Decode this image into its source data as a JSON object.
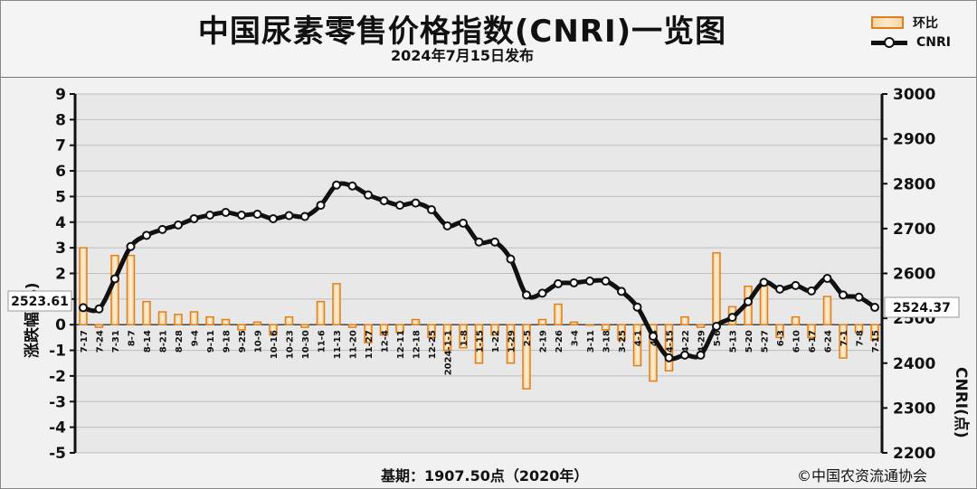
{
  "header": {
    "title": "中国尿素零售价格指数(CNRI)一览图",
    "subtitle": "2024年7月15日发布"
  },
  "legend": {
    "bar_label": "环比",
    "line_label": "CNRI"
  },
  "footer": {
    "base_text": "基期：1907.50点（2020年）",
    "copyright": "©中国农资流通协会"
  },
  "callouts": {
    "first_value": "2523.61",
    "last_value": "2524.37"
  },
  "colors": {
    "bar_border": "#e0801c",
    "bar_fill": "#f3d6a4",
    "line": "#111111",
    "grid": "#bdbdbd",
    "plot_bg": "#e8e8e8"
  },
  "chart_data": {
    "type": "bar+line",
    "title": "中国尿素零售价格指数(CNRI)一览图",
    "categories": [
      "7-17",
      "7-24",
      "7-31",
      "8-7",
      "8-14",
      "8-21",
      "8-28",
      "9-4",
      "9-11",
      "9-18",
      "9-25",
      "10-9",
      "10-16",
      "10-23",
      "10-30",
      "11-6",
      "11-13",
      "11-20",
      "11-27",
      "12-4",
      "12-11",
      "12-18",
      "12-25",
      "2024-1-1",
      "1-8",
      "1-15",
      "1-22",
      "1-29",
      "2-5",
      "2-19",
      "2-26",
      "3-4",
      "3-11",
      "3-18",
      "3-25",
      "4-1",
      "4-8",
      "4-15",
      "4-22",
      "4-29",
      "5-6",
      "5-13",
      "5-20",
      "5-27",
      "6-3",
      "6-10",
      "6-17",
      "6-24",
      "7-1",
      "7-8",
      "7-15"
    ],
    "left_axis": {
      "label": "涨跌幅(%)",
      "ylim": [
        -5,
        9
      ],
      "ticks": [
        -5,
        -4,
        -3,
        -2,
        -1,
        0,
        1,
        2,
        3,
        4,
        5,
        6,
        7,
        8,
        9
      ]
    },
    "right_axis": {
      "label": "CNRI(点)",
      "ylim": [
        2200,
        3000
      ],
      "ticks": [
        2200,
        2300,
        2400,
        2500,
        2600,
        2700,
        2800,
        2900,
        3000
      ]
    },
    "series": [
      {
        "name": "环比",
        "kind": "bar",
        "axis": "left",
        "values": [
          3.0,
          -0.1,
          2.7,
          2.7,
          0.9,
          0.5,
          0.4,
          0.5,
          0.3,
          0.2,
          -0.2,
          0.1,
          -0.4,
          0.3,
          -0.1,
          0.9,
          1.6,
          -0.1,
          -0.7,
          -0.4,
          -0.3,
          0.2,
          -0.5,
          -1.0,
          -0.9,
          -1.5,
          -0.4,
          -1.5,
          -2.5,
          0.2,
          0.8,
          0.1,
          0.0,
          -0.2,
          -0.6,
          -1.6,
          -2.2,
          -1.8,
          0.3,
          -0.1,
          2.8,
          0.7,
          1.5,
          1.7,
          -0.5,
          0.3,
          -0.5,
          1.1,
          -1.3,
          -0.3,
          -0.6
        ]
      },
      {
        "name": "CNRI",
        "kind": "line",
        "axis": "right",
        "values": [
          2523.61,
          2521,
          2588,
          2660,
          2685,
          2698,
          2708,
          2722,
          2730,
          2736,
          2730,
          2732,
          2722,
          2729,
          2727,
          2752,
          2797,
          2795,
          2775,
          2762,
          2752,
          2757,
          2742,
          2706,
          2712,
          2670,
          2670,
          2632,
          2552,
          2556,
          2577,
          2579,
          2583,
          2583,
          2560,
          2525,
          2460,
          2412,
          2418,
          2418,
          2482,
          2502,
          2537,
          2580,
          2565,
          2573,
          2561,
          2589,
          2552,
          2547,
          2524.37
        ]
      }
    ],
    "grid": true,
    "legend_position": "top-right"
  }
}
